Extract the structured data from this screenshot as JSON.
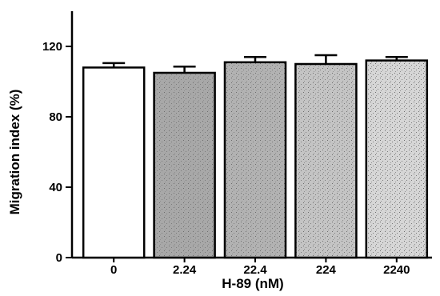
{
  "chart_data": {
    "type": "bar",
    "title": "",
    "xlabel": "H-89 (nM)",
    "ylabel": "Migration index (%)",
    "categories": [
      "0",
      "2.24",
      "22.4",
      "224",
      "2240"
    ],
    "values": [
      108,
      105,
      111,
      110,
      112
    ],
    "errors": [
      2.5,
      3.5,
      3.0,
      5.0,
      2.0
    ],
    "ylim": [
      0,
      140
    ],
    "yticks": [
      0,
      40,
      80,
      120
    ],
    "yticklabels": [
      "0",
      "40",
      "80",
      "120"
    ],
    "grid": false,
    "legend": "none",
    "bar_fills": [
      "#ffffff",
      "#a8a8a8",
      "#b2b2b2",
      "#c4c4c4",
      "#d6d6d6"
    ]
  }
}
